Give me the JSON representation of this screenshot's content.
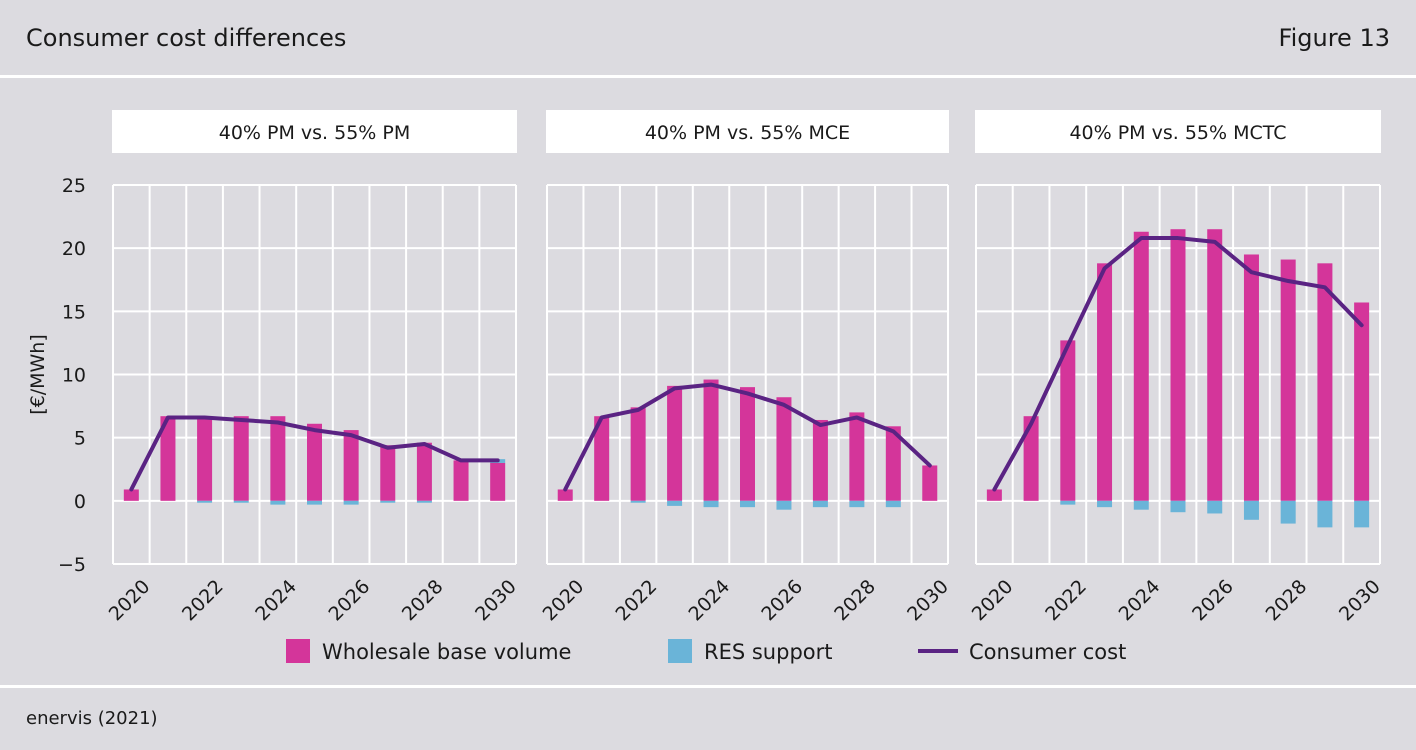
{
  "header": {
    "title": "Consumer cost differences",
    "figure": "Figure 13"
  },
  "footer": {
    "source": "enervis (2021)"
  },
  "colors": {
    "wholesale": "#d4359a",
    "res": "#6ab4d8",
    "consumer": "#5a2383",
    "grid": "#ffffff",
    "background": "#dcdbe0"
  },
  "chart_data": [
    {
      "type": "bar",
      "title": "40% PM vs. 55% PM",
      "ylabel": "[€/MWh]",
      "ylim": [
        -5,
        25
      ],
      "yticks": [
        25,
        20,
        15,
        10,
        5,
        0,
        -5
      ],
      "grid": true,
      "x": [
        2020,
        2021,
        2022,
        2023,
        2024,
        2025,
        2026,
        2027,
        2028,
        2029,
        2030
      ],
      "xticks": [
        2020,
        2022,
        2024,
        2026,
        2028,
        2030
      ],
      "series": [
        {
          "name": "Wholesale base volume",
          "values": [
            0.9,
            6.7,
            6.6,
            6.7,
            6.7,
            6.1,
            5.6,
            4.4,
            4.6,
            3.2,
            3.0
          ]
        },
        {
          "name": "RES support",
          "values": [
            0,
            0,
            -0.15,
            -0.15,
            -0.3,
            -0.3,
            -0.3,
            -0.15,
            -0.15,
            0,
            0.3
          ]
        },
        {
          "name": "Consumer cost",
          "type": "line",
          "values": [
            0.9,
            6.6,
            6.6,
            6.4,
            6.2,
            5.6,
            5.2,
            4.2,
            4.5,
            3.2,
            3.2
          ]
        }
      ]
    },
    {
      "type": "bar",
      "title": "40% PM vs. 55% MCE",
      "ylim": [
        -5,
        25
      ],
      "grid": true,
      "x": [
        2020,
        2021,
        2022,
        2023,
        2024,
        2025,
        2026,
        2027,
        2028,
        2029,
        2030
      ],
      "xticks": [
        2020,
        2022,
        2024,
        2026,
        2028,
        2030
      ],
      "series": [
        {
          "name": "Wholesale base volume",
          "values": [
            0.9,
            6.7,
            7.4,
            9.1,
            9.6,
            9.0,
            8.2,
            6.4,
            7.0,
            5.9,
            2.8
          ]
        },
        {
          "name": "RES support",
          "values": [
            0,
            0,
            -0.15,
            -0.4,
            -0.5,
            -0.5,
            -0.7,
            -0.5,
            -0.5,
            -0.5,
            0
          ]
        },
        {
          "name": "Consumer cost",
          "type": "line",
          "values": [
            0.9,
            6.6,
            7.2,
            8.9,
            9.2,
            8.5,
            7.6,
            6.0,
            6.6,
            5.5,
            2.8
          ]
        }
      ]
    },
    {
      "type": "bar",
      "title": "40% PM vs. 55% MCTC",
      "ylim": [
        -5,
        25
      ],
      "grid": true,
      "x": [
        2020,
        2021,
        2022,
        2023,
        2024,
        2025,
        2026,
        2027,
        2028,
        2029,
        2030
      ],
      "xticks": [
        2020,
        2022,
        2024,
        2026,
        2028,
        2030
      ],
      "series": [
        {
          "name": "Wholesale base volume",
          "values": [
            0.9,
            6.7,
            12.7,
            18.8,
            21.3,
            21.5,
            21.5,
            19.5,
            19.1,
            18.8,
            15.7
          ]
        },
        {
          "name": "RES support",
          "values": [
            0,
            0,
            -0.3,
            -0.5,
            -0.7,
            -0.9,
            -1.0,
            -1.5,
            -1.8,
            -2.1,
            -2.1
          ]
        },
        {
          "name": "Consumer cost",
          "type": "line",
          "values": [
            0.9,
            6.1,
            12.3,
            18.4,
            20.8,
            20.8,
            20.5,
            18.1,
            17.4,
            16.9,
            13.9
          ]
        }
      ]
    }
  ],
  "legend": {
    "items": [
      {
        "label": "Wholesale base volume",
        "kind": "box",
        "color": "#d4359a"
      },
      {
        "label": "RES support",
        "kind": "box",
        "color": "#6ab4d8"
      },
      {
        "label": "Consumer cost",
        "kind": "line",
        "color": "#5a2383"
      }
    ],
    "placement": "bottom"
  }
}
